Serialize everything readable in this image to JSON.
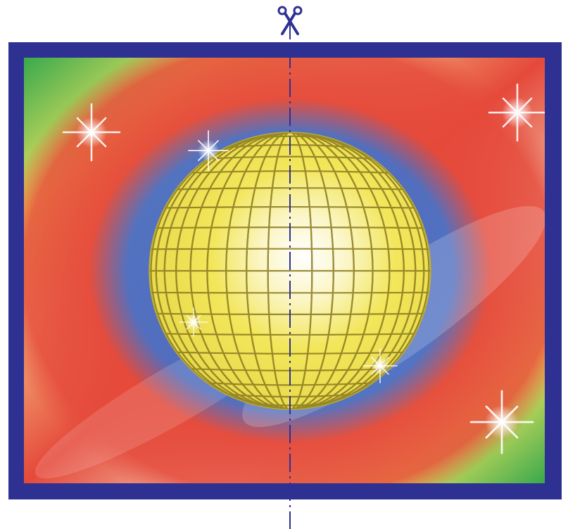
{
  "colors": {
    "frame": "#2e3192",
    "background_green": "#39a94d",
    "ring_red": "#e5493a",
    "ring_blue": "#4a6fc4",
    "ball_yellow": "#f2e65a",
    "tile_lines": "#8a7a1e",
    "cut_line": "#2e3192"
  },
  "icons": {
    "scissors": "scissors-icon"
  }
}
